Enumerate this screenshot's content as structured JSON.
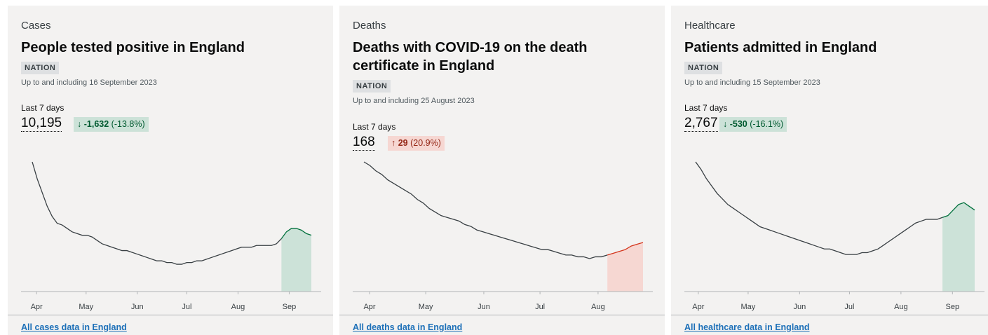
{
  "cards": [
    {
      "caption": "Cases",
      "title": "People tested positive in England",
      "tag": "NATION",
      "date": "Up to and including 16 September 2023",
      "last7_label": "Last 7 days",
      "value": "10,195",
      "change_direction": "down",
      "change_arrow": "↓",
      "change_value": "-1,632",
      "change_pct": "(-13.8%)",
      "link": "All cases data in England"
    },
    {
      "caption": "Deaths",
      "title": "Deaths with COVID-19 on the death certificate in England",
      "tag": "NATION",
      "date": "Up to and including 25 August 2023",
      "last7_label": "Last 7 days",
      "value": "168",
      "change_direction": "up",
      "change_arrow": "↑",
      "change_value": "29",
      "change_pct": "(20.9%)",
      "link": "All deaths data in England"
    },
    {
      "caption": "Healthcare",
      "title": "Patients admitted in England",
      "tag": "NATION",
      "date": "Up to and including 15 September 2023",
      "last7_label": "Last 7 days",
      "value": "2,767",
      "change_direction": "down",
      "change_arrow": "↓",
      "change_value": "-530",
      "change_pct": "(-16.1%)",
      "link": "All healthcare data in England"
    }
  ],
  "colors": {
    "line": "#383f43",
    "down_fill": "#cce2d8",
    "down_line": "#00703c",
    "up_fill": "#f6d7d2",
    "up_line": "#d4351c"
  },
  "chart_data": [
    {
      "type": "area",
      "x_ticks": [
        "Apr",
        "May",
        "Jun",
        "Jul",
        "Aug",
        "Sep"
      ],
      "x_tick_days": [
        14,
        44,
        75,
        105,
        136,
        167
      ],
      "x_range": [
        8,
        177
      ],
      "values_relative": [
        100,
        90,
        82,
        74,
        68,
        64,
        63,
        61,
        59,
        58,
        57,
        57,
        56,
        54,
        52,
        51,
        50,
        49,
        48,
        48,
        47,
        46,
        45,
        44,
        43,
        42,
        42,
        41,
        41,
        40,
        40,
        41,
        41,
        42,
        42,
        43,
        44,
        45,
        46,
        47,
        48,
        49,
        50,
        50,
        50,
        51,
        51,
        51,
        51,
        52,
        55,
        59,
        61,
        61,
        60,
        58,
        57
      ],
      "highlight_last": 7
    },
    {
      "type": "area",
      "x_ticks": [
        "Apr",
        "May",
        "Jun",
        "Jul",
        "Aug"
      ],
      "x_tick_days": [
        7,
        37,
        68,
        98,
        129
      ],
      "x_range": [
        1,
        150
      ],
      "values_relative": [
        100,
        98,
        95,
        93,
        90,
        88,
        86,
        84,
        82,
        79,
        77,
        74,
        72,
        70,
        69,
        68,
        67,
        65,
        64,
        62,
        61,
        60,
        59,
        58,
        57,
        56,
        55,
        54,
        53,
        52,
        51,
        51,
        50,
        49,
        48,
        48,
        47,
        47,
        46,
        47,
        47,
        48,
        49,
        50,
        51,
        53,
        54,
        55
      ],
      "highlight_last": 7
    },
    {
      "type": "area",
      "x_ticks": [
        "Apr",
        "May",
        "Jun",
        "Jul",
        "Aug",
        "Sep"
      ],
      "x_tick_days": [
        13,
        43,
        74,
        104,
        135,
        166
      ],
      "x_range": [
        8,
        176
      ],
      "values_relative": [
        100,
        96,
        91,
        87,
        83,
        80,
        77,
        75,
        73,
        71,
        69,
        67,
        65,
        64,
        63,
        62,
        61,
        60,
        59,
        58,
        57,
        56,
        55,
        54,
        53,
        53,
        52,
        51,
        50,
        50,
        50,
        51,
        51,
        52,
        53,
        55,
        57,
        59,
        61,
        63,
        65,
        67,
        68,
        69,
        69,
        69,
        70,
        71,
        74,
        77,
        78,
        76,
        74
      ],
      "highlight_last": 7
    }
  ]
}
